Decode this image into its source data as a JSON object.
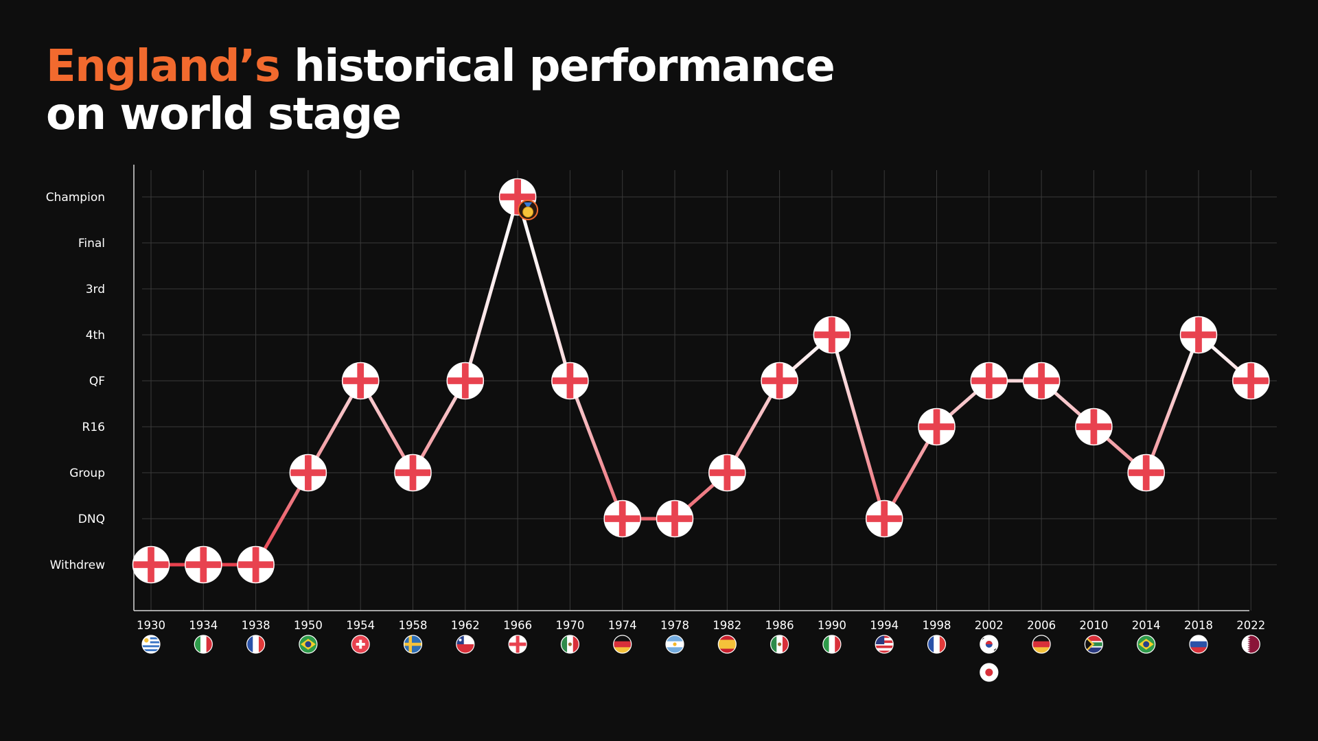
{
  "title": {
    "highlight": "England’s",
    "rest_line1": " historical performance",
    "line2": "on world stage"
  },
  "colors": {
    "background": "#0e0e0e",
    "accent": "#f26a2e",
    "england_red": "#e8424f",
    "line_white": "#ffffff",
    "grid": "#3a3a3a"
  },
  "chart_data": {
    "type": "line",
    "title": "England’s historical performance on world stage",
    "xlabel": "",
    "ylabel": "",
    "y_levels": [
      "Withdrew",
      "DNQ",
      "Group",
      "R16",
      "QF",
      "4th",
      "3rd",
      "Final",
      "Champion"
    ],
    "x": [
      "1930",
      "1934",
      "1938",
      "1950",
      "1954",
      "1958",
      "1962",
      "1966",
      "1970",
      "1974",
      "1978",
      "1982",
      "1986",
      "1990",
      "1994",
      "1998",
      "2002",
      "2006",
      "2010",
      "2014",
      "2018",
      "2022"
    ],
    "series": [
      {
        "values": [
          "Withdrew",
          "Withdrew",
          "Withdrew",
          "Group",
          "QF",
          "Group",
          "QF",
          "Champion",
          "QF",
          "DNQ",
          "DNQ",
          "Group",
          "QF",
          "4th",
          "DNQ",
          "R16",
          "QF",
          "QF",
          "R16",
          "Group",
          "4th",
          "QF"
        ]
      }
    ],
    "markers": "england-flag-icon",
    "champion_badge": "gold-medal-icon",
    "host_flags": [
      [
        "uruguay-flag-icon"
      ],
      [
        "italy-flag-icon"
      ],
      [
        "france-flag-icon"
      ],
      [
        "brazil-flag-icon"
      ],
      [
        "switzerland-flag-icon"
      ],
      [
        "sweden-flag-icon"
      ],
      [
        "chile-flag-icon"
      ],
      [
        "england-flag-icon"
      ],
      [
        "mexico-flag-icon"
      ],
      [
        "germany-flag-icon"
      ],
      [
        "argentina-flag-icon"
      ],
      [
        "spain-flag-icon"
      ],
      [
        "mexico-flag-icon"
      ],
      [
        "italy-flag-icon"
      ],
      [
        "usa-flag-icon"
      ],
      [
        "france-flag-icon"
      ],
      [
        "south-korea-flag-icon",
        "japan-flag-icon"
      ],
      [
        "germany-flag-icon"
      ],
      [
        "south-africa-flag-icon"
      ],
      [
        "brazil-flag-icon"
      ],
      [
        "russia-flag-icon"
      ],
      [
        "qatar-flag-icon"
      ]
    ],
    "grid": true,
    "legend": "none"
  }
}
